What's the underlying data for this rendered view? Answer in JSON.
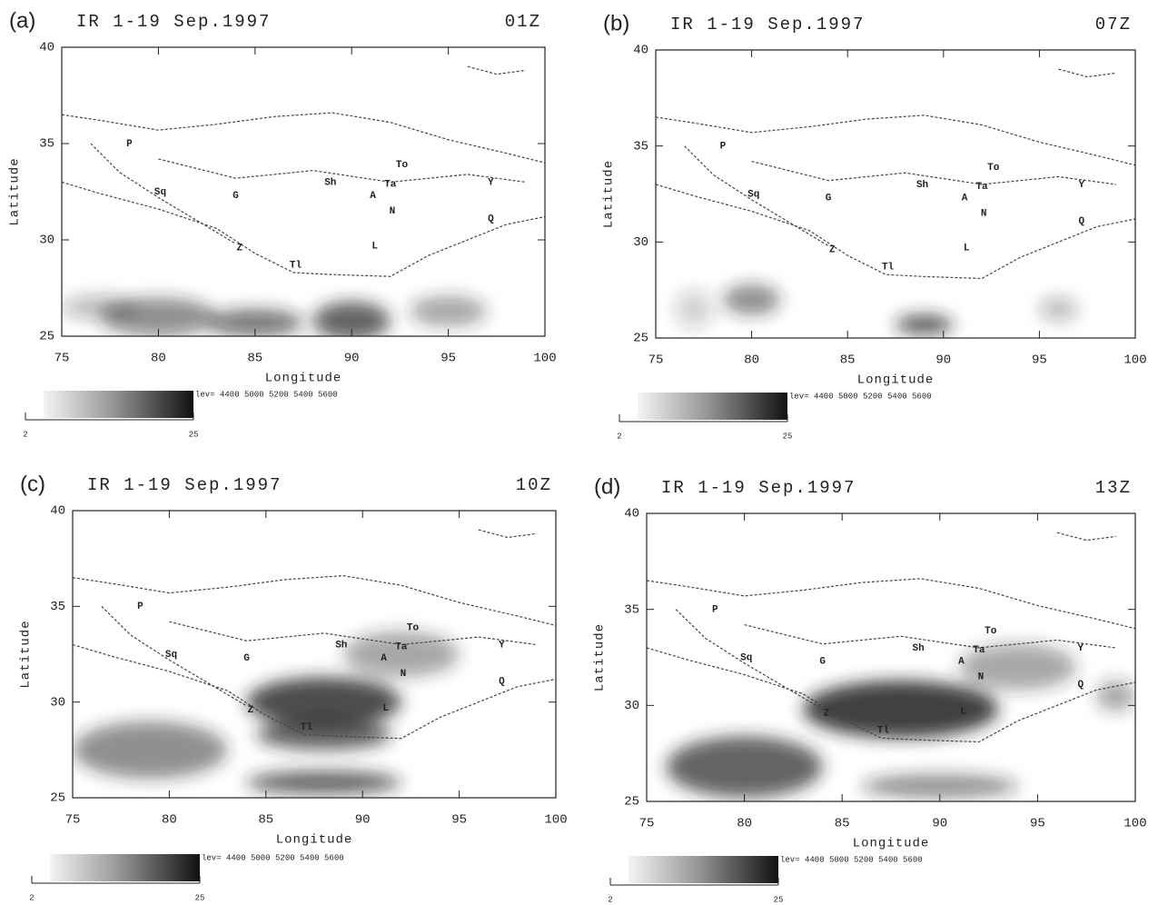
{
  "chart_data": [
    {
      "type": "map",
      "panel": "(a)",
      "title": "IR 1-19 Sep.1997",
      "time": "01Z",
      "xlabel": "Longitude",
      "ylabel": "Latitude",
      "xlim": [
        75,
        100
      ],
      "ylim": [
        25,
        40
      ],
      "xticks": [
        75,
        80,
        85,
        90,
        95,
        100
      ],
      "yticks": [
        25,
        30,
        35,
        40
      ],
      "colorbar": {
        "clim": [
          2,
          25
        ],
        "ticks": [
          2,
          25
        ],
        "levels": "lev= 4400 5000 5200 5400 5600"
      },
      "places": [
        {
          "text": "To",
          "lon": 92.6,
          "lat": 33.9
        },
        {
          "text": "Ta",
          "lon": 92.0,
          "lat": 32.9
        },
        {
          "text": "Sh",
          "lon": 88.9,
          "lat": 33.0
        },
        {
          "text": "A",
          "lon": 91.1,
          "lat": 32.3
        },
        {
          "text": "N",
          "lon": 92.1,
          "lat": 31.5
        },
        {
          "text": "L",
          "lon": 91.2,
          "lat": 29.7
        },
        {
          "text": "G",
          "lon": 84.0,
          "lat": 32.3
        },
        {
          "text": "Sq",
          "lon": 80.1,
          "lat": 32.5
        },
        {
          "text": "P",
          "lon": 78.5,
          "lat": 35.0
        },
        {
          "text": "Y",
          "lon": 97.2,
          "lat": 33.0
        },
        {
          "text": "Q",
          "lon": 97.2,
          "lat": 31.1
        },
        {
          "text": "Z",
          "lon": 84.2,
          "lat": 29.6
        },
        {
          "text": "Tl",
          "lon": 87.1,
          "lat": 28.7
        }
      ]
    },
    {
      "type": "map",
      "panel": "(b)",
      "title": "IR 1-19 Sep.1997",
      "time": "07Z",
      "xlabel": "Longitude",
      "ylabel": "Latitude",
      "xlim": [
        75,
        100
      ],
      "ylim": [
        25,
        40
      ],
      "xticks": [
        75,
        80,
        85,
        90,
        95,
        100
      ],
      "yticks": [
        25,
        30,
        35,
        40
      ],
      "colorbar": {
        "clim": [
          2,
          25
        ],
        "ticks": [
          2,
          25
        ],
        "levels": "lev= 4400 5000 5200 5400 5600"
      },
      "places": [
        {
          "text": "To",
          "lon": 92.6,
          "lat": 33.9
        },
        {
          "text": "Ta",
          "lon": 92.0,
          "lat": 32.9
        },
        {
          "text": "Sh",
          "lon": 88.9,
          "lat": 33.0
        },
        {
          "text": "A",
          "lon": 91.1,
          "lat": 32.3
        },
        {
          "text": "N",
          "lon": 92.1,
          "lat": 31.5
        },
        {
          "text": "L",
          "lon": 91.2,
          "lat": 29.7
        },
        {
          "text": "G",
          "lon": 84.0,
          "lat": 32.3
        },
        {
          "text": "Sq",
          "lon": 80.1,
          "lat": 32.5
        },
        {
          "text": "P",
          "lon": 78.5,
          "lat": 35.0
        },
        {
          "text": "Y",
          "lon": 97.2,
          "lat": 33.0
        },
        {
          "text": "Q",
          "lon": 97.2,
          "lat": 31.1
        },
        {
          "text": "Z",
          "lon": 84.2,
          "lat": 29.6
        },
        {
          "text": "Tl",
          "lon": 87.1,
          "lat": 28.7
        }
      ]
    },
    {
      "type": "map",
      "panel": "(c)",
      "title": "IR 1-19 Sep.1997",
      "time": "10Z",
      "xlabel": "Longitude",
      "ylabel": "Latitude",
      "xlim": [
        75,
        100
      ],
      "ylim": [
        25,
        40
      ],
      "xticks": [
        75,
        80,
        85,
        90,
        95,
        100
      ],
      "yticks": [
        25,
        30,
        35,
        40
      ],
      "colorbar": {
        "clim": [
          2,
          25
        ],
        "ticks": [
          2,
          25
        ],
        "levels": "lev= 4400 5000 5200 5400 5600"
      },
      "places": [
        {
          "text": "To",
          "lon": 92.6,
          "lat": 33.9
        },
        {
          "text": "Ta",
          "lon": 92.0,
          "lat": 32.9
        },
        {
          "text": "Sh",
          "lon": 88.9,
          "lat": 33.0
        },
        {
          "text": "A",
          "lon": 91.1,
          "lat": 32.3
        },
        {
          "text": "N",
          "lon": 92.1,
          "lat": 31.5
        },
        {
          "text": "L",
          "lon": 91.2,
          "lat": 29.7
        },
        {
          "text": "G",
          "lon": 84.0,
          "lat": 32.3
        },
        {
          "text": "Sq",
          "lon": 80.1,
          "lat": 32.5
        },
        {
          "text": "P",
          "lon": 78.5,
          "lat": 35.0
        },
        {
          "text": "Y",
          "lon": 97.2,
          "lat": 33.0
        },
        {
          "text": "Q",
          "lon": 97.2,
          "lat": 31.1
        },
        {
          "text": "Z",
          "lon": 84.2,
          "lat": 29.6
        },
        {
          "text": "Tl",
          "lon": 87.1,
          "lat": 28.7
        }
      ]
    },
    {
      "type": "map",
      "panel": "(d)",
      "title": "IR 1-19 Sep.1997",
      "time": "13Z",
      "xlabel": "Longitude",
      "ylabel": "Latitude",
      "xlim": [
        75,
        100
      ],
      "ylim": [
        25,
        40
      ],
      "xticks": [
        75,
        80,
        85,
        90,
        95,
        100
      ],
      "yticks": [
        25,
        30,
        35,
        40
      ],
      "colorbar": {
        "clim": [
          2,
          25
        ],
        "ticks": [
          2,
          25
        ],
        "levels": "lev= 4400 5000 5200 5400 5600"
      },
      "places": [
        {
          "text": "To",
          "lon": 92.6,
          "lat": 33.9
        },
        {
          "text": "Ta",
          "lon": 92.0,
          "lat": 32.9
        },
        {
          "text": "Sh",
          "lon": 88.9,
          "lat": 33.0
        },
        {
          "text": "A",
          "lon": 91.1,
          "lat": 32.3
        },
        {
          "text": "N",
          "lon": 92.1,
          "lat": 31.5
        },
        {
          "text": "L",
          "lon": 91.2,
          "lat": 29.7
        },
        {
          "text": "G",
          "lon": 84.0,
          "lat": 32.3
        },
        {
          "text": "Sq",
          "lon": 80.1,
          "lat": 32.5
        },
        {
          "text": "P",
          "lon": 78.5,
          "lat": 35.0
        },
        {
          "text": "Y",
          "lon": 97.2,
          "lat": 33.0
        },
        {
          "text": "Q",
          "lon": 97.2,
          "lat": 31.1
        },
        {
          "text": "Z",
          "lon": 84.2,
          "lat": 29.6
        },
        {
          "text": "Tl",
          "lon": 87.1,
          "lat": 28.7
        }
      ]
    }
  ]
}
